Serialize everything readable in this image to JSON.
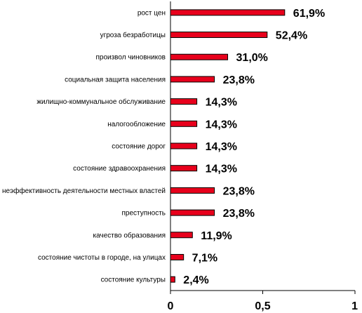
{
  "chart_data": {
    "type": "bar",
    "orientation": "horizontal",
    "categories": [
      "рост цен",
      "угроза безработицы",
      "произвол чиновников",
      "социальная защита населения",
      "жилищно-коммунальное обслуживание",
      "налогообложение",
      "состояние дорог",
      "состояние здравоохранения",
      "неэффективность деятельности местных властей",
      "преступность",
      "качество образования",
      "состояние чистоты в городе, на улицах",
      "состояние культуры"
    ],
    "values": [
      0.619,
      0.524,
      0.31,
      0.238,
      0.143,
      0.143,
      0.143,
      0.143,
      0.238,
      0.238,
      0.119,
      0.071,
      0.024
    ],
    "value_labels": [
      "61,9%",
      "52,4%",
      "31,0%",
      "23,8%",
      "14,3%",
      "14,3%",
      "14,3%",
      "14,3%",
      "23,8%",
      "23,8%",
      "11,9%",
      "7,1%",
      "2,4%"
    ],
    "xlim": [
      0,
      1
    ],
    "x_ticks": [
      0,
      0.5,
      1
    ],
    "x_tick_labels": [
      "0",
      "0,5",
      "1"
    ],
    "title": "",
    "xlabel": "",
    "ylabel": "",
    "grid": false,
    "legend": "none",
    "bar_color": "#e8001c",
    "bar_edge_color": "#000000"
  }
}
